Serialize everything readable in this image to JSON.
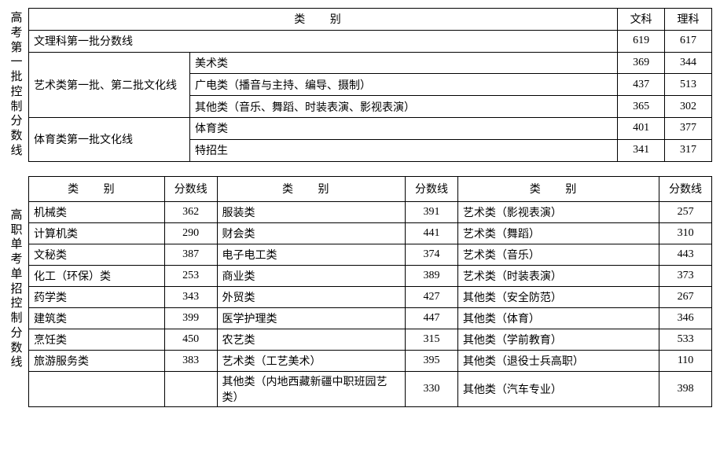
{
  "section1": {
    "sideLabel": "高考第一批控制分数线",
    "headerCategory": "类 别",
    "colWenke": "文科",
    "colLike": "理科",
    "rows": [
      {
        "group": "文理科第一批分数线",
        "groupRowspan": 1,
        "sub": null,
        "wenke": "619",
        "like": "617"
      },
      {
        "group": "艺术类第一批、第二批文化线",
        "groupRowspan": 3,
        "sub": "美术类",
        "wenke": "369",
        "like": "344"
      },
      {
        "group": null,
        "sub": "广电类（播音与主持、编导、摄制）",
        "wenke": "437",
        "like": "513"
      },
      {
        "group": null,
        "sub": "其他类（音乐、舞蹈、时装表演、影视表演）",
        "wenke": "365",
        "like": "302"
      },
      {
        "group": "体育类第一批文化线",
        "groupRowspan": 2,
        "sub": "体育类",
        "wenke": "401",
        "like": "377"
      },
      {
        "group": null,
        "sub": "特招生",
        "wenke": "341",
        "like": "317"
      }
    ]
  },
  "section2": {
    "sideLabel": "高职单考单招控制分数线",
    "headerCategory": "类 别",
    "headerScore": "分数线",
    "rows": [
      {
        "c1": "机械类",
        "s1": "362",
        "c2": "服装类",
        "s2": "391",
        "c3": "艺术类（影视表演）",
        "s3": "257"
      },
      {
        "c1": "计算机类",
        "s1": "290",
        "c2": "财会类",
        "s2": "441",
        "c3": "艺术类（舞蹈）",
        "s3": "310"
      },
      {
        "c1": "文秘类",
        "s1": "387",
        "c2": "电子电工类",
        "s2": "374",
        "c3": "艺术类（音乐）",
        "s3": "443"
      },
      {
        "c1": "化工（环保）类",
        "s1": "253",
        "c2": "商业类",
        "s2": "389",
        "c3": "艺术类（时装表演）",
        "s3": "373"
      },
      {
        "c1": "药学类",
        "s1": "343",
        "c2": "外贸类",
        "s2": "427",
        "c3": "其他类（安全防范）",
        "s3": "267"
      },
      {
        "c1": "建筑类",
        "s1": "399",
        "c2": "医学护理类",
        "s2": "447",
        "c3": "其他类（体育）",
        "s3": "346"
      },
      {
        "c1": "烹饪类",
        "s1": "450",
        "c2": "农艺类",
        "s2": "315",
        "c3": "其他类（学前教育）",
        "s3": "533"
      },
      {
        "c1": "旅游服务类",
        "s1": "383",
        "c2": "艺术类（工艺美术）",
        "s2": "395",
        "c3": "其他类（退役士兵高职）",
        "s3": "110"
      }
    ],
    "lastRow": {
      "c2": "其他类（内地西藏新疆中职班园艺类）",
      "s2": "330",
      "c3": "其他类（汽车专业）",
      "s3": "398"
    }
  },
  "colors": {
    "border": "#000000",
    "text": "#000000",
    "background": "#ffffff"
  },
  "fonts": {
    "family": "SimSun",
    "baseSize": 14
  }
}
